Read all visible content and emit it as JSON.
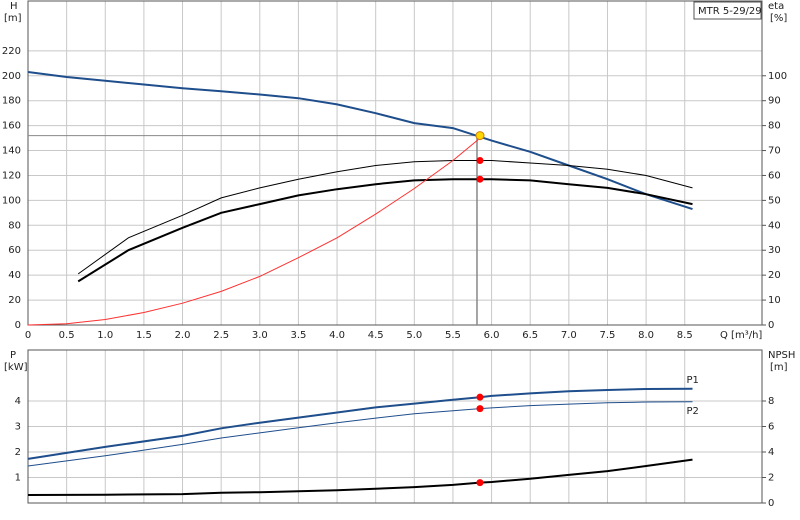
{
  "chart_data": [
    {
      "type": "line",
      "title": "MTR 5-29/29",
      "y_label": "H",
      "y_unit": "[m]",
      "y2_label": "eta",
      "y2_unit": "[%]",
      "x_label": "Q [m³/h]",
      "xlim": [
        0,
        9.5
      ],
      "ylim": [
        0,
        260
      ],
      "y2lim": [
        0,
        130
      ],
      "grid": true,
      "show_xtick_labels": true,
      "xticks": [
        0,
        0.5,
        {
          "value": 1,
          "label": "1.0"
        },
        1.5,
        {
          "value": 2,
          "label": "2.0"
        },
        2.5,
        {
          "value": 3,
          "label": "3.0"
        },
        3.5,
        {
          "value": 4,
          "label": "4.0"
        },
        4.5,
        {
          "value": 5,
          "label": "5.0"
        },
        5.5,
        {
          "value": 6,
          "label": "6.0"
        },
        6.5,
        {
          "value": 7,
          "label": "7.0"
        },
        7.5,
        {
          "value": 8,
          "label": "8.0"
        },
        8.5
      ],
      "yticks": [
        0,
        20,
        40,
        60,
        80,
        100,
        120,
        140,
        160,
        180,
        200,
        220
      ],
      "y2ticks": [
        0,
        10,
        20,
        30,
        40,
        50,
        60,
        70,
        80,
        90,
        100
      ],
      "series": [
        {
          "color": "#1f4e8c",
          "width": 2,
          "x": [
            0,
            0.5,
            1,
            1.5,
            2,
            2.5,
            3,
            3.5,
            4,
            4.5,
            5,
            5.5,
            6,
            6.5,
            7,
            7.5,
            8,
            8.6
          ],
          "values": [
            203,
            199,
            196,
            193,
            190,
            187.5,
            185,
            182,
            177,
            170,
            162,
            158,
            148,
            139,
            128,
            117,
            105,
            93
          ]
        },
        {
          "color": "#000000",
          "width": 1,
          "axis": "y2",
          "x": [
            0.65,
            1.3,
            2,
            2.5,
            3,
            3.5,
            4,
            4.5,
            5,
            5.5,
            6,
            6.5,
            7,
            7.5,
            8,
            8.6
          ],
          "values": [
            20.5,
            35,
            44,
            51,
            55,
            58.5,
            61.5,
            64,
            65.5,
            66,
            66,
            65,
            64,
            62.5,
            60,
            55
          ]
        },
        {
          "color": "#000000",
          "width": 2,
          "axis": "y2",
          "x": [
            0.65,
            1.3,
            2,
            2.5,
            3,
            3.5,
            4,
            4.5,
            5,
            5.5,
            6,
            6.5,
            7,
            7.5,
            8,
            8.6
          ],
          "values": [
            17.5,
            30,
            39,
            45,
            48.5,
            52,
            54.5,
            56.5,
            58,
            58.5,
            58.5,
            58,
            56.5,
            55,
            52.5,
            48.5
          ]
        },
        {
          "color": "#ff3030",
          "width": 1,
          "x": [
            0,
            0.5,
            1,
            1.5,
            2,
            2.5,
            3,
            3.5,
            4,
            4.5,
            5,
            5.5,
            5.85
          ],
          "values": [
            0,
            1,
            4.4,
            10,
            17.5,
            27,
            39,
            54,
            70,
            89,
            109.5,
            132,
            150
          ]
        }
      ],
      "duty_point": {
        "x": 5.85,
        "y": 152,
        "color": "#ffd700"
      },
      "points": [
        {
          "x": 5.85,
          "y": 66,
          "axis": "y2",
          "color": "#ff0000"
        },
        {
          "x": 5.85,
          "y": 58.5,
          "axis": "y2",
          "color": "#ff0000"
        }
      ]
    },
    {
      "type": "line",
      "y_label": "P",
      "y_unit": "[kW]",
      "y2_label": "NPSH",
      "y2_unit": "[m]",
      "xlim": [
        0,
        9.5
      ],
      "ylim": [
        0,
        6
      ],
      "y2lim": [
        0,
        12
      ],
      "grid": true,
      "show_xtick_labels": false,
      "xticks": [
        0,
        0.5,
        1,
        1.5,
        2,
        2.5,
        3,
        3.5,
        4,
        4.5,
        5,
        5.5,
        6,
        6.5,
        7,
        7.5,
        8,
        8.5
      ],
      "yticks": [
        1,
        2,
        3,
        4
      ],
      "y2ticks": [
        0,
        2,
        4,
        6,
        8
      ],
      "series": [
        {
          "name": "P1",
          "color": "#1f4e8c",
          "width": 2,
          "x": [
            0,
            1,
            2,
            2.5,
            3,
            3.5,
            4,
            4.5,
            5,
            5.5,
            5.85,
            6,
            6.5,
            7,
            7.5,
            8,
            8.6
          ],
          "values": [
            1.73,
            2.2,
            2.63,
            2.93,
            3.15,
            3.35,
            3.55,
            3.75,
            3.9,
            4.05,
            4.15,
            4.2,
            4.3,
            4.38,
            4.43,
            4.47,
            4.48
          ]
        },
        {
          "name": "P2",
          "color": "#1f4e8c",
          "width": 1,
          "x": [
            0,
            1,
            2,
            2.5,
            3,
            3.5,
            4,
            4.5,
            5,
            5.5,
            5.85,
            6,
            6.5,
            7,
            7.5,
            8,
            8.6
          ],
          "values": [
            1.45,
            1.85,
            2.3,
            2.55,
            2.75,
            2.95,
            3.15,
            3.33,
            3.5,
            3.62,
            3.7,
            3.73,
            3.82,
            3.88,
            3.93,
            3.96,
            3.97
          ]
        },
        {
          "color": "#000000",
          "width": 2,
          "axis": "y2",
          "x": [
            0,
            1,
            2,
            2.5,
            3,
            3.5,
            4,
            4.5,
            5,
            5.5,
            5.85,
            6,
            6.5,
            7,
            7.5,
            8,
            8.6
          ],
          "values": [
            0.63,
            0.65,
            0.7,
            0.8,
            0.85,
            0.92,
            1,
            1.12,
            1.25,
            1.42,
            1.6,
            1.65,
            1.9,
            2.2,
            2.5,
            2.9,
            3.4
          ]
        }
      ],
      "points": [
        {
          "x": 5.85,
          "y": 4.15,
          "color": "#ff0000"
        },
        {
          "x": 5.85,
          "y": 3.7,
          "color": "#ff0000"
        },
        {
          "x": 5.85,
          "y": 1.6,
          "axis": "y2",
          "color": "#ff0000"
        }
      ]
    }
  ]
}
